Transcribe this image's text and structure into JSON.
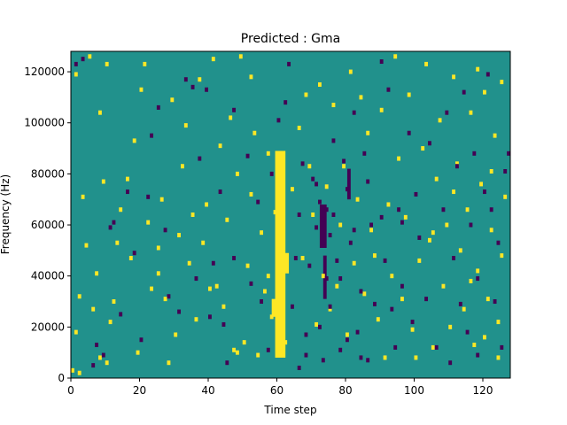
{
  "chart_data": {
    "type": "heatmap",
    "title": "Predicted : Gma",
    "xlabel": "Time step",
    "ylabel": "Frequency (Hz)",
    "xlim": [
      0,
      128
    ],
    "ylim": [
      0,
      128000
    ],
    "x_ticks": [
      0,
      20,
      40,
      60,
      80,
      100,
      120
    ],
    "y_ticks": [
      0,
      20000,
      40000,
      60000,
      80000,
      100000,
      120000
    ],
    "x_tick_labels": [
      "0",
      "20",
      "40",
      "60",
      "80",
      "100",
      "120"
    ],
    "y_tick_labels": [
      "0",
      "20000",
      "40000",
      "60000",
      "80000",
      "100000",
      "120000"
    ],
    "grid": false,
    "value_levels": {
      "low": -1,
      "mid": 0,
      "high": 1
    },
    "colors": {
      "low": "#440154",
      "mid": "#21918c",
      "high": "#fde725"
    },
    "high_cells": [
      [
        0.5,
        3000
      ],
      [
        2.5,
        2000
      ],
      [
        1.5,
        18000
      ],
      [
        2.5,
        32000
      ],
      [
        3.5,
        71000
      ],
      [
        1.5,
        119000
      ],
      [
        5.5,
        126000
      ],
      [
        10.5,
        123000
      ],
      [
        8.5,
        104000
      ],
      [
        9.5,
        77000
      ],
      [
        4.5,
        52000
      ],
      [
        7.5,
        41000
      ],
      [
        12.5,
        30000
      ],
      [
        6.5,
        27000
      ],
      [
        8.5,
        8000
      ],
      [
        11.5,
        22000
      ],
      [
        14.5,
        66000
      ],
      [
        17.5,
        47000
      ],
      [
        18.5,
        93000
      ],
      [
        21.5,
        123000
      ],
      [
        19.5,
        10000
      ],
      [
        22.5,
        61000
      ],
      [
        25.5,
        41000
      ],
      [
        27.5,
        31000
      ],
      [
        29.5,
        109000
      ],
      [
        31.5,
        56000
      ],
      [
        30.5,
        17000
      ],
      [
        33.5,
        99000
      ],
      [
        35.5,
        64000
      ],
      [
        36.5,
        23000
      ],
      [
        37.5,
        117000
      ],
      [
        41.5,
        125000
      ],
      [
        40.5,
        35000
      ],
      [
        38.5,
        53000
      ],
      [
        42.5,
        36000
      ],
      [
        44.5,
        28000
      ],
      [
        45.5,
        62000
      ],
      [
        46.5,
        102000
      ],
      [
        47.5,
        11000
      ],
      [
        48.5,
        80000
      ],
      [
        49.5,
        126000
      ],
      [
        50.5,
        14000
      ],
      [
        51.5,
        44000
      ],
      [
        52.5,
        72000
      ],
      [
        53.5,
        96000
      ],
      [
        54.5,
        9000
      ],
      [
        55.5,
        57000
      ],
      [
        56.5,
        34000
      ],
      [
        57.5,
        88000
      ],
      [
        58.5,
        24000
      ],
      [
        59.5,
        65000
      ],
      [
        60.5,
        52000
      ],
      [
        66.5,
        98000
      ],
      [
        67.5,
        47000
      ],
      [
        68.5,
        111000
      ],
      [
        69.5,
        83000
      ],
      [
        70.5,
        64000
      ],
      [
        71.5,
        21000
      ],
      [
        72.5,
        115000
      ],
      [
        73.5,
        40000
      ],
      [
        74.5,
        75000
      ],
      [
        75.5,
        27000
      ],
      [
        76.5,
        107000
      ],
      [
        78.5,
        60000
      ],
      [
        79.5,
        83000
      ],
      [
        80.5,
        17000
      ],
      [
        81.5,
        120000
      ],
      [
        82.5,
        45000
      ],
      [
        83.5,
        70000
      ],
      [
        84.5,
        110000
      ],
      [
        85.5,
        33000
      ],
      [
        86.5,
        96000
      ],
      [
        87.5,
        58000
      ],
      [
        89.5,
        23000
      ],
      [
        90.5,
        105000
      ],
      [
        91.5,
        8000
      ],
      [
        92.5,
        68000
      ],
      [
        93.5,
        40000
      ],
      [
        94.5,
        126000
      ],
      [
        95.5,
        86000
      ],
      [
        96.5,
        31000
      ],
      [
        97.5,
        63000
      ],
      [
        98.5,
        111000
      ],
      [
        99.5,
        19000
      ],
      [
        101.5,
        46000
      ],
      [
        102.5,
        90000
      ],
      [
        103.5,
        123000
      ],
      [
        104.5,
        54000
      ],
      [
        105.5,
        12000
      ],
      [
        106.5,
        78000
      ],
      [
        107.5,
        101000
      ],
      [
        108.5,
        36000
      ],
      [
        109.5,
        60000
      ],
      [
        110.5,
        20000
      ],
      [
        111.5,
        118000
      ],
      [
        112.5,
        84000
      ],
      [
        113.5,
        50000
      ],
      [
        114.5,
        27000
      ],
      [
        115.5,
        66000
      ],
      [
        116.5,
        104000
      ],
      [
        117.5,
        13000
      ],
      [
        118.5,
        42000
      ],
      [
        119.5,
        76000
      ],
      [
        120.5,
        112000
      ],
      [
        121.5,
        31000
      ],
      [
        122.5,
        58000
      ],
      [
        123.5,
        95000
      ],
      [
        124.5,
        22000
      ],
      [
        125.5,
        48000
      ],
      [
        126.5,
        71000
      ],
      [
        124.5,
        8000
      ],
      [
        122.5,
        81000
      ],
      [
        120.5,
        16000
      ],
      [
        118.5,
        121000
      ],
      [
        10.5,
        6000
      ],
      [
        13.5,
        53000
      ],
      [
        16.5,
        78000
      ],
      [
        20.5,
        113000
      ],
      [
        23.5,
        35000
      ],
      [
        26.5,
        70000
      ],
      [
        28.5,
        6000
      ],
      [
        32.5,
        83000
      ],
      [
        34.5,
        45000
      ],
      [
        39.5,
        68000
      ],
      [
        43.5,
        91000
      ],
      [
        48.5,
        10000
      ],
      [
        52.5,
        118000
      ],
      [
        25.5,
        51000
      ],
      [
        57.5,
        40000
      ],
      [
        62.5,
        14000
      ],
      [
        64.5,
        74000
      ],
      [
        77.5,
        36000
      ],
      [
        88.5,
        48000
      ],
      [
        100.5,
        8000
      ],
      [
        105.5,
        57000
      ],
      [
        111.5,
        73000
      ],
      [
        116.5,
        38000
      ],
      [
        125.5,
        116000
      ]
    ],
    "high_bands": [
      {
        "x_from": 59.5,
        "x_to": 62.5,
        "y_from": 8000,
        "y_to": 89000
      },
      {
        "x_from": 58.5,
        "x_to": 61.5,
        "y_from": 24000,
        "y_to": 31000
      },
      {
        "x_from": 60.5,
        "x_to": 63.5,
        "y_from": 41000,
        "y_to": 49000
      }
    ],
    "low_cells": [
      [
        1.5,
        123000
      ],
      [
        3.5,
        125000
      ],
      [
        9.5,
        9000
      ],
      [
        7.5,
        13000
      ],
      [
        14.5,
        25000
      ],
      [
        12.5,
        61000
      ],
      [
        16.5,
        73000
      ],
      [
        20.5,
        15000
      ],
      [
        22.5,
        71000
      ],
      [
        25.5,
        106000
      ],
      [
        28.5,
        32000
      ],
      [
        33.5,
        117000
      ],
      [
        35.5,
        114000
      ],
      [
        37.5,
        86000
      ],
      [
        39.5,
        113000
      ],
      [
        40.5,
        24000
      ],
      [
        41.5,
        45000
      ],
      [
        43.5,
        73000
      ],
      [
        44.5,
        21000
      ],
      [
        47.5,
        105000
      ],
      [
        47.5,
        47000
      ],
      [
        52.5,
        37000
      ],
      [
        54.5,
        69000
      ],
      [
        57.5,
        11000
      ],
      [
        58.5,
        80000
      ],
      [
        60.5,
        101000
      ],
      [
        63.5,
        123000
      ],
      [
        64.5,
        28000
      ],
      [
        65.5,
        47000
      ],
      [
        66.5,
        64000
      ],
      [
        67.5,
        84000
      ],
      [
        68.5,
        9000
      ],
      [
        68.5,
        17000
      ],
      [
        69.5,
        44000
      ],
      [
        70.5,
        78000
      ],
      [
        71.5,
        59000
      ],
      [
        72.5,
        69000
      ],
      [
        73.5,
        62000
      ],
      [
        73.5,
        53000
      ],
      [
        74.5,
        66000
      ],
      [
        74.5,
        39000
      ],
      [
        75.5,
        56000
      ],
      [
        75.5,
        28000
      ],
      [
        76.5,
        93000
      ],
      [
        77.5,
        46000
      ],
      [
        78.5,
        11000
      ],
      [
        79.5,
        85000
      ],
      [
        80.5,
        74000
      ],
      [
        81.5,
        53000
      ],
      [
        82.5,
        104000
      ],
      [
        83.5,
        18000
      ],
      [
        84.5,
        34000
      ],
      [
        85.5,
        88000
      ],
      [
        86.5,
        7000
      ],
      [
        87.5,
        60000
      ],
      [
        88.5,
        29000
      ],
      [
        90.5,
        124000
      ],
      [
        91.5,
        46000
      ],
      [
        92.5,
        113000
      ],
      [
        94.5,
        12000
      ],
      [
        95.5,
        66000
      ],
      [
        96.5,
        36000
      ],
      [
        98.5,
        96000
      ],
      [
        99.5,
        22000
      ],
      [
        100.5,
        72000
      ],
      [
        101.5,
        55000
      ],
      [
        103.5,
        31000
      ],
      [
        104.5,
        92000
      ],
      [
        106.5,
        12000
      ],
      [
        108.5,
        66000
      ],
      [
        109.5,
        104000
      ],
      [
        111.5,
        47000
      ],
      [
        112.5,
        83000
      ],
      [
        113.5,
        29000
      ],
      [
        114.5,
        112000
      ],
      [
        115.5,
        18000
      ],
      [
        116.5,
        60000
      ],
      [
        117.5,
        88000
      ],
      [
        118.5,
        39000
      ],
      [
        120.5,
        73000
      ],
      [
        121.5,
        119000
      ],
      [
        123.5,
        30000
      ],
      [
        124.5,
        53000
      ],
      [
        126.5,
        81000
      ],
      [
        127.5,
        88000
      ],
      [
        125.5,
        12000
      ],
      [
        122.5,
        66000
      ],
      [
        118.5,
        9000
      ],
      [
        110.5,
        6000
      ],
      [
        96.5,
        61000
      ],
      [
        86.5,
        77000
      ],
      [
        80.5,
        15000
      ],
      [
        6.5,
        5000
      ],
      [
        11.5,
        59000
      ],
      [
        18.5,
        49000
      ],
      [
        23.5,
        95000
      ],
      [
        27.5,
        58000
      ],
      [
        31.5,
        26000
      ],
      [
        36.5,
        39000
      ],
      [
        45.5,
        6000
      ],
      [
        51.5,
        87000
      ],
      [
        55.5,
        30000
      ],
      [
        62.5,
        108000
      ],
      [
        66.5,
        4000
      ],
      [
        71.5,
        76000
      ],
      [
        72.5,
        20000
      ],
      [
        73.5,
        7000
      ],
      [
        76.5,
        64000
      ],
      [
        78.5,
        39000
      ],
      [
        82.5,
        58000
      ],
      [
        84.5,
        8000
      ],
      [
        90.5,
        63000
      ],
      [
        93.5,
        27000
      ]
    ],
    "low_bands": [
      {
        "x_from": 72.5,
        "x_to": 74.5,
        "y_from": 51000,
        "y_to": 68000
      },
      {
        "x_from": 73.5,
        "x_to": 74.5,
        "y_from": 31000,
        "y_to": 48000
      },
      {
        "x_from": 80.5,
        "x_to": 81.5,
        "y_from": 70000,
        "y_to": 82000
      }
    ]
  }
}
